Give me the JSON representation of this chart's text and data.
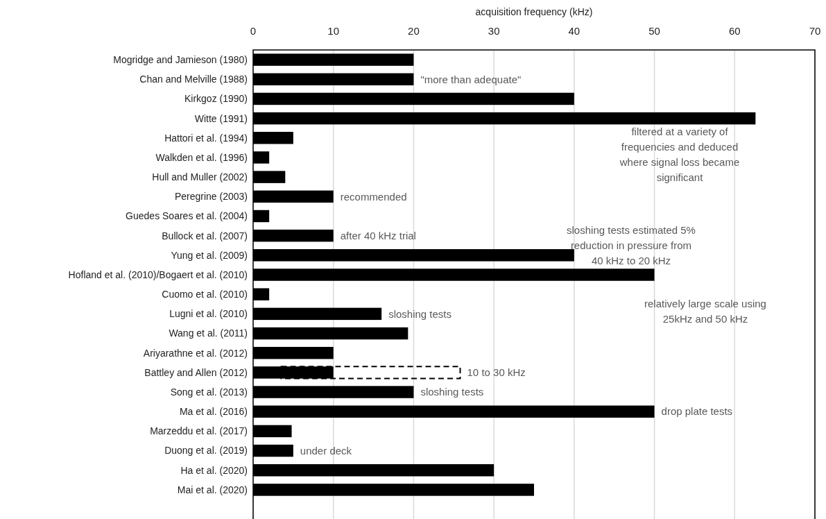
{
  "chart_data": {
    "type": "bar",
    "orientation": "horizontal",
    "xlabel": "acquisition frequency (kHz)",
    "categories": [
      "Mogridge and Jamieson (1980)",
      "Chan and Melville (1988)",
      "Kirkgoz (1990)",
      "Witte (1991)",
      "Hattori et al. (1994)",
      "Walkden et al. (1996)",
      "Hull and Muller (2002)",
      "Peregrine (2003)",
      "Guedes Soares et al. (2004)",
      "Bullock et al. (2007)",
      "Yung et al. (2009)",
      "Hofland et al. (2010)/Bogaert et al. (2010)",
      "Cuomo et al. (2010)",
      "Lugni et al. (2010)",
      "Wang et al. (2011)",
      "Ariyarathne et al. (2012)",
      "Battley and Allen (2012)",
      "Song et al. (2013)",
      "Ma et al. (2016)",
      "Marzeddu et al. (2017)",
      "Duong et al. (2019)",
      "Ha et al. (2020)",
      "Mai et al. (2020)"
    ],
    "series": [
      {
        "color": "#000000",
        "values": [
          20,
          20,
          40,
          62.6,
          5,
          2,
          4,
          10,
          2,
          10,
          40,
          50,
          2,
          16,
          19.3,
          10,
          10,
          20,
          50,
          4.8,
          5,
          30,
          35
        ]
      },
      {
        "color": "#000000",
        "line_style": "dashed",
        "base": [
          null,
          null,
          null,
          null,
          null,
          null,
          null,
          null,
          null,
          null,
          null,
          null,
          null,
          null,
          null,
          null,
          3.5,
          null,
          null,
          null,
          null,
          null,
          null
        ],
        "values": [
          null,
          null,
          null,
          null,
          null,
          null,
          null,
          null,
          null,
          null,
          null,
          null,
          null,
          null,
          null,
          null,
          22.3,
          null,
          null,
          null,
          null,
          null,
          null
        ]
      }
    ],
    "xlim": [
      0,
      70
    ],
    "xticks": [
      0,
      10,
      20,
      30,
      40,
      50,
      60,
      70
    ],
    "grid": "x",
    "annotations": [
      {
        "text": "\"more than adequate\"",
        "x": 20,
        "y": "Chan and Melville (1988)"
      },
      "filtered at a variety of\nfrequencies and deduced\nwhere signal loss became\nsignificant",
      {
        "text": "recommended",
        "x": 10,
        "y": "Peregrine (2003)"
      },
      {
        "text": "after 40 kHz trial",
        "x": 10,
        "y": "Bullock et al. (2007)"
      },
      "sloshing tests estimated 5%\nreduction in pressure from\n40 kHz to 20 kHz",
      "relatively large scale using\n25kHz and 50 kHz",
      {
        "text": "sloshing tests",
        "x": 16,
        "y": "Lugni et al. (2010)"
      },
      {
        "text": "10 to 30 kHz",
        "x": 25.8,
        "y": "Battley and Allen (2012)"
      },
      {
        "text": "sloshing tests",
        "x": 20,
        "y": "Song et al. (2013)"
      },
      {
        "text": "drop plate tests",
        "x": 50,
        "y": "Ma et al. (2016)"
      },
      {
        "text": "under deck",
        "x": 5,
        "y": "Duong et al. (2019)"
      }
    ]
  }
}
